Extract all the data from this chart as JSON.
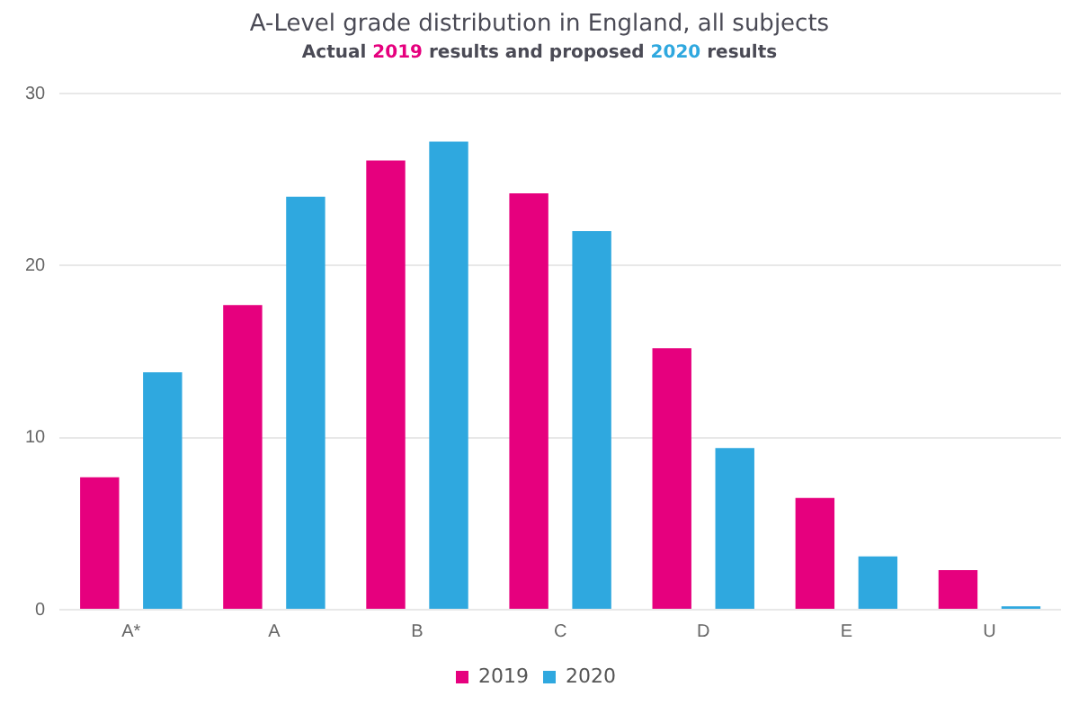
{
  "chart_data": {
    "type": "bar",
    "title": "A-Level grade distribution in England, all subjects",
    "subtitle": "Actual 2019 results and proposed 2020 results",
    "categories": [
      "A*",
      "A",
      "B",
      "C",
      "D",
      "E",
      "U"
    ],
    "series": [
      {
        "name": "2019",
        "color": "#e6007e",
        "values": [
          7.7,
          17.7,
          26.1,
          24.2,
          15.2,
          6.5,
          2.3
        ]
      },
      {
        "name": "2020",
        "color": "#2fa8df",
        "values": [
          13.8,
          24.0,
          27.2,
          22.0,
          9.4,
          3.1,
          0.2
        ]
      }
    ],
    "ylim": [
      0,
      30
    ],
    "yticks": [
      0,
      10,
      20,
      30
    ],
    "grid": "y",
    "legend": "bottom"
  }
}
